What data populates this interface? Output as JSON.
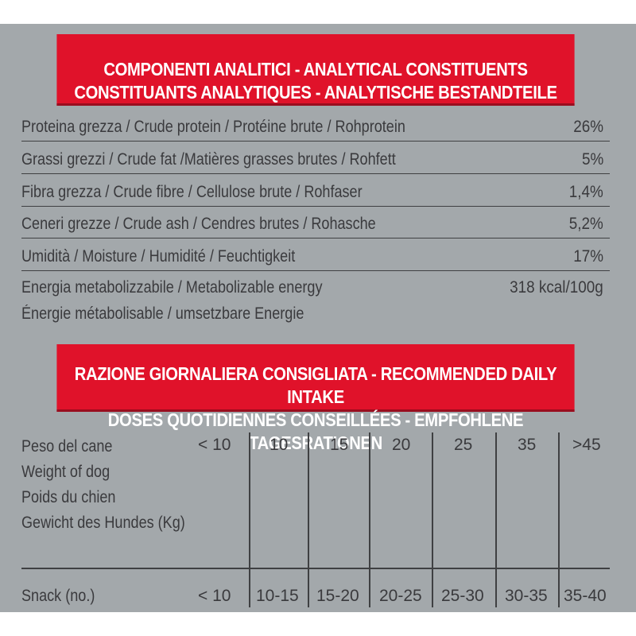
{
  "analytical": {
    "heading_line1": "COMPONENTI ANALITICI - ANALYTICAL CONSTITUENTS",
    "heading_line2": "CONSTITUANTS ANALYTIQUES - ANALYTISCHE BESTANDTEILE",
    "rows": [
      {
        "label": "Proteina grezza / Crude protein / Protéine brute / Rohprotein",
        "value": "26%"
      },
      {
        "label": "Grassi grezzi / Crude fat /Matières grasses brutes / Rohfett",
        "value": "5%"
      },
      {
        "label": "Fibra grezza / Crude fibre / Cellulose brute / Rohfaser",
        "value": "1,4%"
      },
      {
        "label": "Ceneri grezze / Crude ash / Cendres brutes / Rohasche",
        "value": "5,2%"
      },
      {
        "label": "Umidità / Moisture / Humidité / Feuchtigkeit",
        "value": "17%"
      }
    ],
    "energy": {
      "label_line1": "Energia metabolizzabile / Metabolizable energy",
      "label_line2": "Énergie métabolisable / umsetzbare Energie",
      "value": "318 kcal/100g"
    }
  },
  "daily": {
    "heading_line1": "RAZIONE GIORNALIERA CONSIGLIATA - RECOMMENDED DAILY INTAKE",
    "heading_line2": "DOSES QUOTIDIENNES CONSEILLÉES - EMPFOHLENE TAGESRATIONEN",
    "weight_label": [
      "Peso del cane",
      "Weight of dog",
      "Poids du chien",
      "Gewicht des Hundes (Kg)"
    ],
    "weights": [
      "< 10",
      "10",
      "15",
      "20",
      "25",
      "35",
      ">45"
    ],
    "snack_label": "Snack (no.)",
    "snacks": [
      "< 10",
      "10-15",
      "15-20",
      "20-25",
      "25-30",
      "30-35",
      "35-40"
    ]
  },
  "colors": {
    "panel_bg": "#a3a8ab",
    "banner_red": "#e0122a",
    "text": "#3a3a3d"
  }
}
